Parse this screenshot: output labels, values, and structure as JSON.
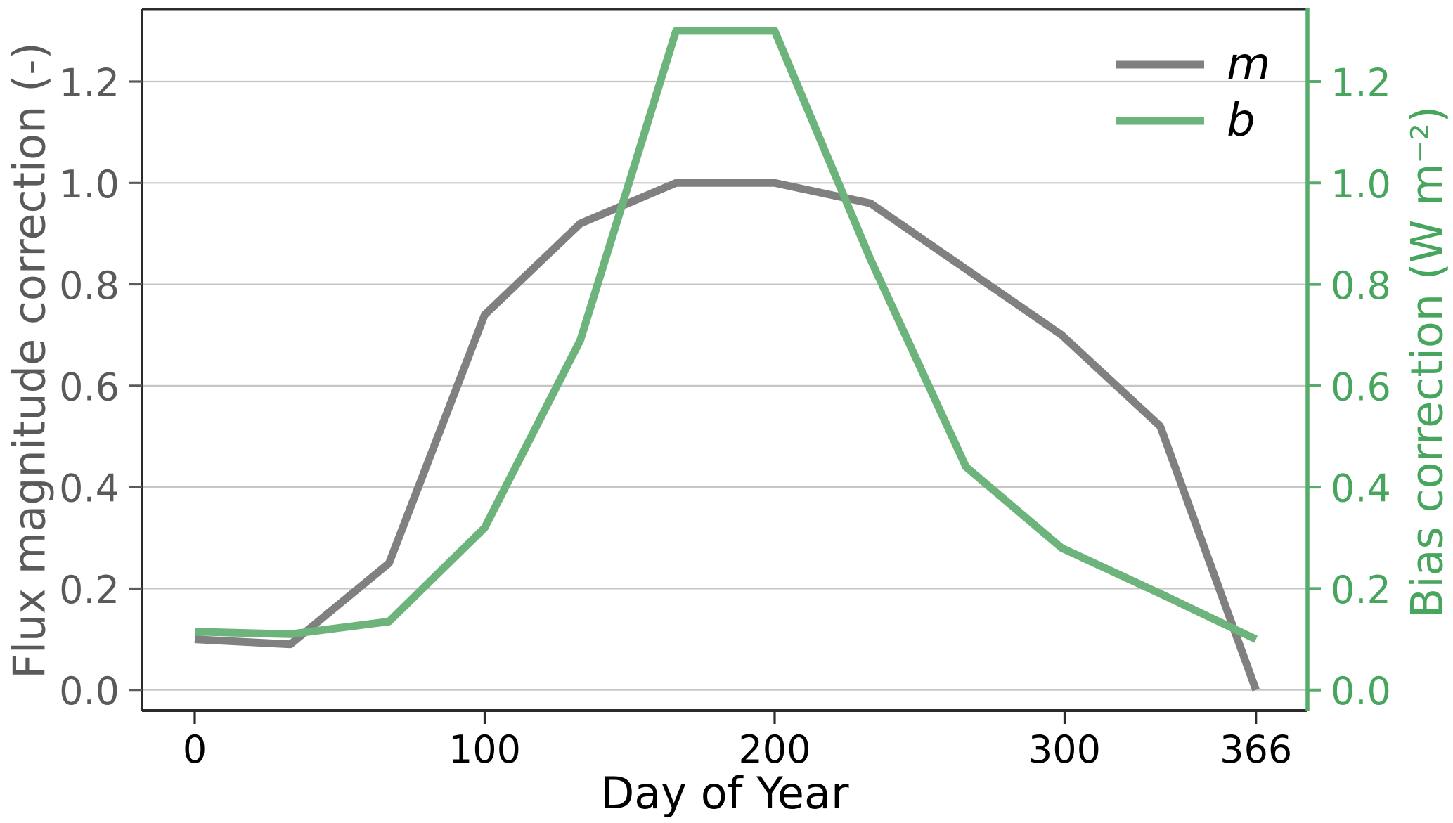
{
  "page": {
    "background": "#ffffff"
  },
  "chart_data": {
    "type": "line",
    "title": "",
    "xlabel": "Day of Year",
    "ylabel_left": "Flux magnitude correction (-)",
    "ylabel_right": "Bias correction (W m⁻²)",
    "x": [
      0,
      33,
      67,
      100,
      133,
      166,
      200,
      233,
      266,
      299,
      333,
      366
    ],
    "series": [
      {
        "name": "m",
        "axis": "left",
        "color": "#808080",
        "values": [
          0.1,
          0.09,
          0.25,
          0.74,
          0.92,
          1.0,
          1.0,
          0.96,
          0.83,
          0.7,
          0.52,
          0.0
        ]
      },
      {
        "name": "b",
        "axis": "right",
        "color": "#6db37c",
        "values": [
          0.115,
          0.11,
          0.135,
          0.32,
          0.69,
          1.3,
          1.3,
          0.85,
          0.44,
          0.28,
          0.19,
          0.1
        ]
      }
    ],
    "x_ticks": [
      0,
      100,
      200,
      300,
      366
    ],
    "x_tick_labels": [
      "0",
      "100",
      "200",
      "300",
      "366"
    ],
    "y_ticks": [
      0.0,
      0.2,
      0.4,
      0.6,
      0.8,
      1.0,
      1.2
    ],
    "y_tick_labels_left": [
      "0.0",
      "0.2",
      "0.4",
      "0.6",
      "0.8",
      "1.0",
      "1.2"
    ],
    "y_tick_labels_right": [
      "0.0",
      "0.2",
      "0.4",
      "0.6",
      "0.8",
      "1.0",
      "1.2"
    ],
    "xlim": [
      -18.3,
      384.3
    ],
    "ylim": [
      -0.042,
      1.344
    ],
    "grid": "horizontal",
    "legend": {
      "position": "upper right",
      "entries": [
        {
          "label": "m",
          "color": "#808080"
        },
        {
          "label": "b",
          "color": "#6db37c"
        }
      ]
    },
    "colors": {
      "left_axis_text": "#5a5a5a",
      "right_axis_text": "#47a55e",
      "right_spine": "#58ac6b",
      "x_axis_text": "#000000",
      "grid": "#c6c6c6",
      "spine": "#2b2b2b",
      "background": "#ffffff"
    }
  }
}
